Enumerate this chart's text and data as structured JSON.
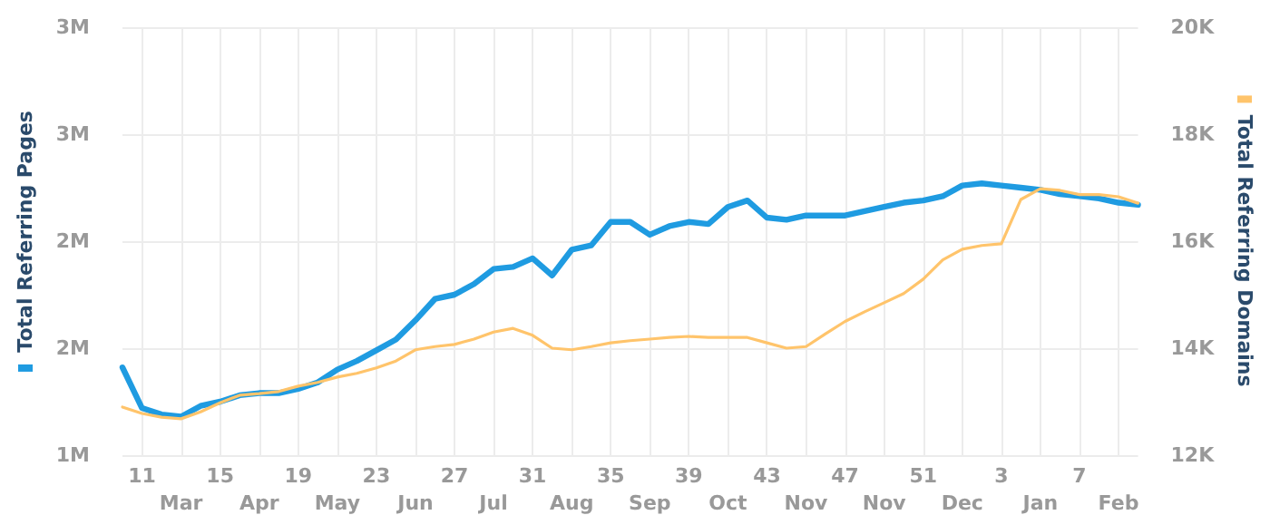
{
  "chart_data": {
    "type": "line",
    "ylabel": "Total Referring Pages",
    "y2label": "Total Referring Domains",
    "categories": [
      null,
      "11",
      null,
      "Mar",
      null,
      "15",
      null,
      "Apr",
      null,
      "19",
      null,
      "May",
      null,
      "23",
      null,
      "Jun",
      null,
      "27",
      null,
      "Jul",
      null,
      "31",
      null,
      "Aug",
      null,
      "35",
      null,
      "Sep",
      null,
      "39",
      null,
      "Oct",
      null,
      "43",
      null,
      "Nov",
      null,
      "47",
      null,
      "Nov",
      null,
      "51",
      null,
      "Dec",
      null,
      "3",
      null,
      "Jan",
      null,
      "7",
      null,
      "Feb",
      null
    ],
    "series": [
      {
        "color": "#1f9be1",
        "values": [
          1410000,
          1220000,
          1190000,
          1180000,
          1230000,
          1250000,
          1280000,
          1290000,
          1290000,
          1310000,
          1340000,
          1400000,
          1440000,
          1490000,
          1540000,
          1630000,
          1730000,
          1750000,
          1800000,
          1870000,
          1880000,
          1920000,
          1840000,
          1960000,
          1980000,
          2090000,
          2090000,
          2030000,
          2070000,
          2090000,
          2080000,
          2160000,
          2190000,
          2110000,
          2100000,
          2120000,
          2120000,
          2120000,
          2140000,
          2160000,
          2180000,
          2190000,
          2210000,
          2260000,
          2270000,
          2260000,
          2250000,
          2240000,
          2220000,
          2210000,
          2200000,
          2180000,
          2170000
        ]
      },
      {
        "color": "#ffc46b",
        "axis": "y2",
        "values": [
          12900,
          12780,
          12710,
          12680,
          12810,
          12980,
          13120,
          13150,
          13190,
          13290,
          13360,
          13460,
          13530,
          13630,
          13760,
          13970,
          14030,
          14070,
          14170,
          14300,
          14370,
          14240,
          14000,
          13970,
          14030,
          14100,
          14140,
          14170,
          14200,
          14220,
          14200,
          14200,
          14200,
          14100,
          14000,
          14030,
          14270,
          14500,
          14680,
          14850,
          15020,
          15290,
          15650,
          15850,
          15920,
          15950,
          16780,
          16980,
          16950,
          16870,
          16870,
          16830,
          16710
        ]
      }
    ],
    "ylim": [
      1000000,
      3000000
    ],
    "yticks": [
      {
        "value": 1000000,
        "label": "1M"
      },
      {
        "value": 1500000,
        "label": "2M"
      },
      {
        "value": 2000000,
        "label": "2M"
      },
      {
        "value": 2500000,
        "label": "3M"
      },
      {
        "value": 3000000,
        "label": "3M"
      }
    ],
    "y2lim": [
      12000,
      20000
    ],
    "y2ticks": [
      {
        "value": 12000,
        "label": "12K"
      },
      {
        "value": 14000,
        "label": "14K"
      },
      {
        "value": 16000,
        "label": "16K"
      },
      {
        "value": 18000,
        "label": "18K"
      },
      {
        "value": 20000,
        "label": "20K"
      }
    ],
    "grid": true,
    "marker": "none",
    "line_style": "solid"
  }
}
